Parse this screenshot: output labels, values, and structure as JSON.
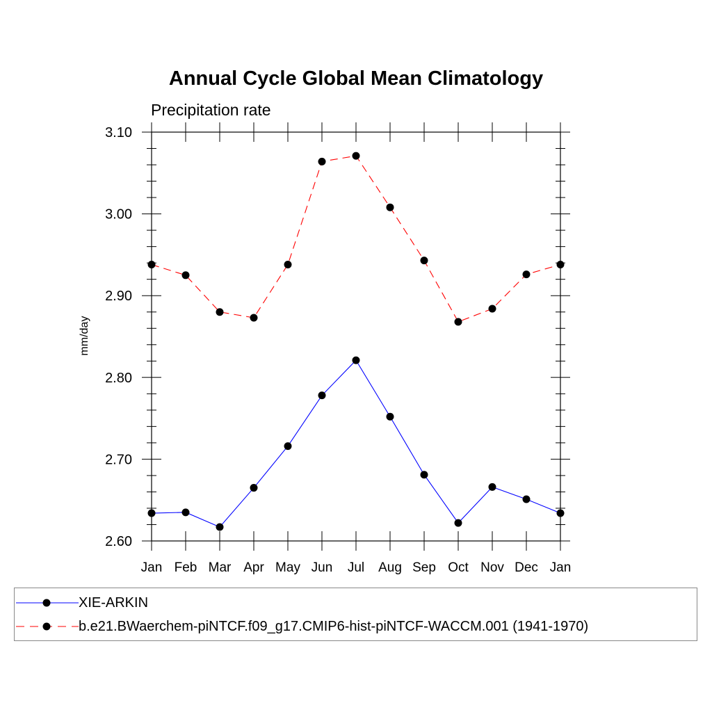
{
  "chart_data": {
    "type": "line",
    "title": "Annual Cycle Global Mean Climatology",
    "subtitle": "Precipitation rate",
    "xlabel": "",
    "ylabel": "mm/day",
    "categories": [
      "Jan",
      "Feb",
      "Mar",
      "Apr",
      "May",
      "Jun",
      "Jul",
      "Aug",
      "Sep",
      "Oct",
      "Nov",
      "Dec",
      "Jan"
    ],
    "ylim": [
      2.6,
      3.1
    ],
    "yticks": [
      "2.60",
      "2.70",
      "2.80",
      "2.90",
      "3.00",
      "3.10"
    ],
    "ytick_values": [
      2.6,
      2.7,
      2.8,
      2.9,
      3.0,
      3.1
    ],
    "grid": false,
    "legend_position": "bottom",
    "series": [
      {
        "name": "XIE-ARKIN",
        "color": "#0000ff",
        "dash": "solid",
        "values": [
          2.634,
          2.635,
          2.617,
          2.665,
          2.716,
          2.778,
          2.821,
          2.752,
          2.681,
          2.622,
          2.666,
          2.651,
          2.634
        ]
      },
      {
        "name": "b.e21.BWaerchem-piNTCF.f09_g17.CMIP6-hist-piNTCF-WACCM.001 (1941-1970)",
        "color": "#ff0000",
        "dash": "dashed",
        "values": [
          2.938,
          2.925,
          2.88,
          2.873,
          2.938,
          3.064,
          3.071,
          3.008,
          2.943,
          2.868,
          2.884,
          2.926,
          2.938
        ]
      }
    ]
  }
}
